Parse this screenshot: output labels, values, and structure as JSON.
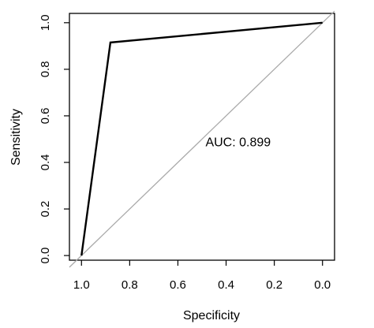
{
  "chart_data": {
    "type": "line",
    "xlabel": "Specificity",
    "ylabel": "Sensitivity",
    "xlim": [
      1.05,
      -0.05
    ],
    "ylim": [
      -0.02,
      1.04
    ],
    "x_ticks": [
      1.0,
      0.8,
      0.6,
      0.4,
      0.2,
      0.0
    ],
    "x_tick_labels": [
      "1.0",
      "0.8",
      "0.6",
      "0.4",
      "0.2",
      "0.0"
    ],
    "y_ticks": [
      0.0,
      0.2,
      0.4,
      0.6,
      0.8,
      1.0
    ],
    "y_tick_labels": [
      "0.0",
      "0.2",
      "0.4",
      "0.6",
      "0.8",
      "1.0"
    ],
    "series": [
      {
        "x": [
          1.0,
          0.88,
          0.0
        ],
        "y": [
          0.0,
          0.915,
          1.0
        ],
        "color": "#000000"
      }
    ],
    "reference_line": {
      "x": [
        1.05,
        -0.05
      ],
      "y": [
        -0.05,
        1.05
      ],
      "color": "#aaaaaa"
    },
    "annotation": {
      "text": "AUC: 0.899",
      "x": 0.35,
      "y": 0.47
    },
    "grid": false
  }
}
